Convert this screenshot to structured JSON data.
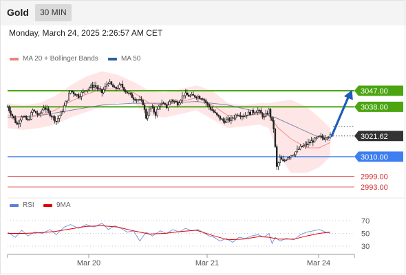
{
  "header": {
    "title": "Gold",
    "timeframe": "30 MIN"
  },
  "datetime": "Monday, March 24, 2025 2:26:57 AM CET",
  "main_legend": [
    {
      "label": "MA 20 + Bollinger Bands",
      "color": "#f08080"
    },
    {
      "label": "MA 50",
      "color": "#2d5f9a"
    }
  ],
  "rsi_legend": [
    {
      "label": "RSI",
      "color": "#5b7fd6"
    },
    {
      "label": "9MA",
      "color": "#e00000"
    }
  ],
  "colors": {
    "resistance": "#4aa511",
    "support": "#3d7ef0",
    "target": "#e06060",
    "price_tag": "#333333",
    "arrow": "#1f5bb8"
  },
  "chart_data": [
    {
      "type": "candlestick",
      "title": "Gold",
      "ylim": [
        2986,
        3067
      ],
      "current_price": {
        "label": "3021.62",
        "value": 3021.62
      },
      "levels": [
        {
          "label": "3047.00",
          "value": 3047.0,
          "kind": "resistance"
        },
        {
          "label": "3038.00",
          "value": 3038.0,
          "kind": "resistance"
        },
        {
          "label": "3010.00",
          "value": 3010.0,
          "kind": "support"
        },
        {
          "label": "2999.00",
          "value": 2999.0,
          "kind": "target"
        },
        {
          "label": "2993.00",
          "value": 2993.0,
          "kind": "target"
        }
      ],
      "projection": {
        "from": 3021.6,
        "to": 3046
      },
      "x_tick_labels": [
        "Mar 20",
        "Mar 21",
        "Mar 24"
      ],
      "price_path": [
        [
          0,
          3038
        ],
        [
          3,
          3033
        ],
        [
          6,
          3028
        ],
        [
          9,
          3033
        ],
        [
          13,
          3030
        ],
        [
          16,
          3036
        ],
        [
          20,
          3033
        ],
        [
          23,
          3038
        ],
        [
          27,
          3034
        ],
        [
          31,
          3030
        ],
        [
          35,
          3036
        ],
        [
          40,
          3047
        ],
        [
          45,
          3044
        ],
        [
          50,
          3048
        ],
        [
          55,
          3050
        ],
        [
          60,
          3046
        ],
        [
          64,
          3052
        ],
        [
          68,
          3048
        ],
        [
          72,
          3050
        ],
        [
          76,
          3046
        ],
        [
          80,
          3043
        ],
        [
          83,
          3042
        ],
        [
          86,
          3040
        ],
        [
          88,
          3032
        ],
        [
          91,
          3038
        ],
        [
          94,
          3034
        ],
        [
          97,
          3040
        ],
        [
          101,
          3038
        ],
        [
          104,
          3042
        ],
        [
          108,
          3040
        ],
        [
          112,
          3045
        ],
        [
          116,
          3044
        ],
        [
          120,
          3044
        ],
        [
          124,
          3043
        ],
        [
          127,
          3039
        ],
        [
          130,
          3036
        ],
        [
          133,
          3033
        ],
        [
          137,
          3030
        ],
        [
          142,
          3031
        ],
        [
          146,
          3034
        ],
        [
          150,
          3033
        ],
        [
          155,
          3035
        ],
        [
          159,
          3036
        ],
        [
          163,
          3032
        ],
        [
          166,
          3036
        ],
        [
          169,
          3026
        ],
        [
          171,
          3004
        ],
        [
          173,
          3009
        ],
        [
          175,
          3007
        ],
        [
          178,
          3010
        ],
        [
          182,
          3012
        ],
        [
          186,
          3015
        ],
        [
          190,
          3017
        ],
        [
          194,
          3019
        ],
        [
          198,
          3021
        ],
        [
          201,
          3020.5
        ],
        [
          203,
          3022
        ],
        [
          205,
          3021.6
        ]
      ],
      "ma20": [
        [
          0,
          3033
        ],
        [
          10,
          3032
        ],
        [
          20,
          3033
        ],
        [
          30,
          3036
        ],
        [
          40,
          3041
        ],
        [
          50,
          3045
        ],
        [
          60,
          3048
        ],
        [
          70,
          3048
        ],
        [
          80,
          3046
        ],
        [
          90,
          3040
        ],
        [
          100,
          3039
        ],
        [
          110,
          3041
        ],
        [
          120,
          3043
        ],
        [
          130,
          3039
        ],
        [
          140,
          3033
        ],
        [
          150,
          3033
        ],
        [
          160,
          3034
        ],
        [
          166,
          3033
        ],
        [
          172,
          3026
        ],
        [
          180,
          3020
        ],
        [
          190,
          3015
        ],
        [
          198,
          3015
        ],
        [
          205,
          3018
        ]
      ],
      "ma50": [
        [
          0,
          3032
        ],
        [
          20,
          3033
        ],
        [
          40,
          3036
        ],
        [
          60,
          3039
        ],
        [
          80,
          3040
        ],
        [
          100,
          3040
        ],
        [
          120,
          3041
        ],
        [
          140,
          3039
        ],
        [
          160,
          3035
        ],
        [
          170,
          3032
        ],
        [
          185,
          3026
        ],
        [
          195,
          3022
        ],
        [
          205,
          3019
        ]
      ],
      "bb_upper": [
        [
          0,
          3040
        ],
        [
          10,
          3039
        ],
        [
          20,
          3040
        ],
        [
          30,
          3044
        ],
        [
          40,
          3050
        ],
        [
          50,
          3055
        ],
        [
          60,
          3058
        ],
        [
          70,
          3056
        ],
        [
          80,
          3052
        ],
        [
          90,
          3047
        ],
        [
          100,
          3046
        ],
        [
          110,
          3048
        ],
        [
          120,
          3050
        ],
        [
          130,
          3047
        ],
        [
          140,
          3040
        ],
        [
          150,
          3039
        ],
        [
          160,
          3040
        ],
        [
          166,
          3040
        ],
        [
          172,
          3041
        ],
        [
          180,
          3042
        ],
        [
          190,
          3038
        ],
        [
          198,
          3032
        ],
        [
          205,
          3026
        ]
      ],
      "bb_lower": [
        [
          0,
          3026
        ],
        [
          10,
          3025
        ],
        [
          20,
          3026
        ],
        [
          30,
          3028
        ],
        [
          40,
          3032
        ],
        [
          50,
          3035
        ],
        [
          60,
          3038
        ],
        [
          70,
          3040
        ],
        [
          80,
          3040
        ],
        [
          90,
          3033
        ],
        [
          100,
          3032
        ],
        [
          110,
          3034
        ],
        [
          120,
          3036
        ],
        [
          130,
          3031
        ],
        [
          140,
          3026
        ],
        [
          150,
          3027
        ],
        [
          160,
          3028
        ],
        [
          166,
          3026
        ],
        [
          172,
          3011
        ],
        [
          180,
          3001
        ],
        [
          190,
          3001
        ],
        [
          198,
          3004
        ],
        [
          205,
          3010
        ]
      ]
    },
    {
      "type": "line",
      "title": "RSI",
      "ylim": [
        20,
        78
      ],
      "y_tick_labels": [
        "70",
        "50",
        "30"
      ],
      "y_ticks": [
        70,
        50,
        30
      ],
      "rsi": [
        [
          0,
          52
        ],
        [
          5,
          44
        ],
        [
          9,
          55
        ],
        [
          13,
          46
        ],
        [
          17,
          52
        ],
        [
          22,
          50
        ],
        [
          27,
          56
        ],
        [
          31,
          48
        ],
        [
          36,
          60
        ],
        [
          40,
          64
        ],
        [
          45,
          58
        ],
        [
          50,
          64
        ],
        [
          55,
          60
        ],
        [
          60,
          66
        ],
        [
          64,
          56
        ],
        [
          68,
          62
        ],
        [
          72,
          58
        ],
        [
          76,
          52
        ],
        [
          80,
          54
        ],
        [
          84,
          38
        ],
        [
          88,
          52
        ],
        [
          92,
          46
        ],
        [
          97,
          54
        ],
        [
          101,
          50
        ],
        [
          105,
          56
        ],
        [
          109,
          52
        ],
        [
          113,
          58
        ],
        [
          117,
          54
        ],
        [
          121,
          56
        ],
        [
          124,
          52
        ],
        [
          128,
          46
        ],
        [
          131,
          44
        ],
        [
          135,
          38
        ],
        [
          139,
          42
        ],
        [
          143,
          36
        ],
        [
          147,
          44
        ],
        [
          151,
          42
        ],
        [
          155,
          46
        ],
        [
          159,
          48
        ],
        [
          163,
          44
        ],
        [
          166,
          50
        ],
        [
          168,
          34
        ],
        [
          170,
          44
        ],
        [
          173,
          38
        ],
        [
          177,
          42
        ],
        [
          182,
          40
        ],
        [
          186,
          48
        ],
        [
          190,
          52
        ],
        [
          194,
          54
        ],
        [
          198,
          56
        ],
        [
          202,
          52
        ],
        [
          205,
          50
        ]
      ],
      "rsi_ma": [
        [
          0,
          50
        ],
        [
          10,
          50
        ],
        [
          20,
          51
        ],
        [
          30,
          53
        ],
        [
          40,
          57
        ],
        [
          50,
          61
        ],
        [
          60,
          62
        ],
        [
          70,
          60
        ],
        [
          80,
          54
        ],
        [
          90,
          49
        ],
        [
          100,
          50
        ],
        [
          110,
          53
        ],
        [
          120,
          55
        ],
        [
          130,
          47
        ],
        [
          140,
          40
        ],
        [
          150,
          41
        ],
        [
          160,
          45
        ],
        [
          166,
          44
        ],
        [
          172,
          41
        ],
        [
          182,
          41
        ],
        [
          190,
          46
        ],
        [
          198,
          50
        ],
        [
          205,
          52
        ]
      ]
    }
  ]
}
